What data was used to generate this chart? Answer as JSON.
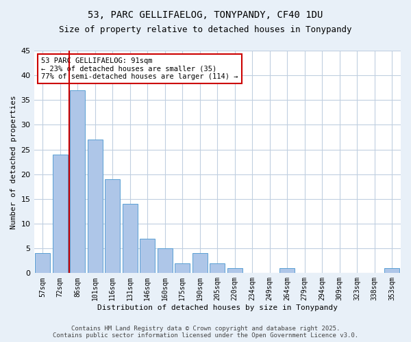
{
  "title": "53, PARC GELLIFAELOG, TONYPANDY, CF40 1DU",
  "subtitle": "Size of property relative to detached houses in Tonypandy",
  "xlabel": "Distribution of detached houses by size in Tonypandy",
  "ylabel": "Number of detached properties",
  "categories": [
    "57sqm",
    "72sqm",
    "86sqm",
    "101sqm",
    "116sqm",
    "131sqm",
    "146sqm",
    "160sqm",
    "175sqm",
    "190sqm",
    "205sqm",
    "220sqm",
    "234sqm",
    "249sqm",
    "264sqm",
    "279sqm",
    "294sqm",
    "309sqm",
    "323sqm",
    "338sqm",
    "353sqm"
  ],
  "bar_heights": [
    4,
    24,
    37,
    27,
    19,
    14,
    7,
    5,
    2,
    4,
    2,
    1,
    0,
    0,
    1,
    0,
    0,
    0,
    0,
    0,
    1
  ],
  "ylim": [
    0,
    45
  ],
  "yticks": [
    0,
    5,
    10,
    15,
    20,
    25,
    30,
    35,
    40,
    45
  ],
  "bar_color": "#aec6e8",
  "bar_edge_color": "#5a9fd4",
  "vline_x": 1.5,
  "vline_color": "#cc0000",
  "annotation_text": "53 PARC GELLIFAELOG: 91sqm\n← 23% of detached houses are smaller (35)\n77% of semi-detached houses are larger (114) →",
  "annotation_box_color": "#ffffff",
  "annotation_box_edge": "#cc0000",
  "footer": "Contains HM Land Registry data © Crown copyright and database right 2025.\nContains public sector information licensed under the Open Government Licence v3.0.",
  "bg_color": "#e8f0f8",
  "plot_bg_color": "#ffffff",
  "grid_color": "#c0cfe0"
}
